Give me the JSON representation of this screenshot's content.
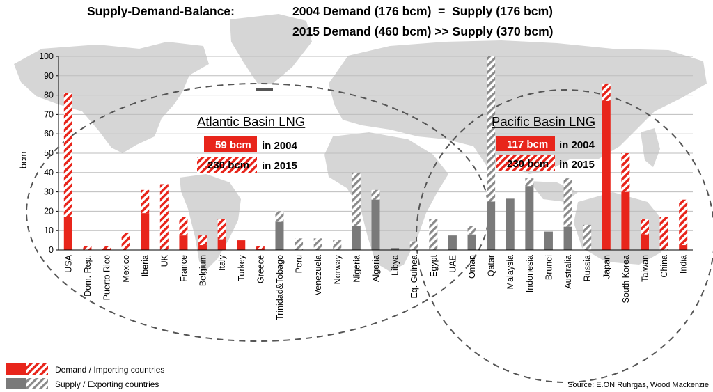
{
  "header": {
    "label": "Supply-Demand-Balance:",
    "line1": "2004 Demand (176 bcm)  =  Supply (176 bcm)",
    "line2": "2015 Demand (460 bcm) >> Supply (370 bcm)"
  },
  "source": "Source: E.ON Ruhrgas, Wood Mackenzie",
  "colors": {
    "demand": "#e8251b",
    "supply": "#7a7a7a",
    "map": "#d6d6d6",
    "grid": "#bdbdbd"
  },
  "basins": {
    "atlantic": {
      "title": "Atlantic Basin LNG",
      "v2004": "59 bcm",
      "l2004": "in 2004",
      "v2015": "230 bcm",
      "l2015": "in 2015"
    },
    "pacific": {
      "title": "Pacific Basin LNG",
      "v2004": "117 bcm",
      "l2004": "in 2004",
      "v2015": "230 bcm",
      "l2015": "in 2015"
    }
  },
  "legend": {
    "demand": "Demand / Importing countries",
    "supply": "Supply / Exporting countries"
  },
  "chart_data": {
    "type": "bar",
    "ylabel": "bcm",
    "ylim": [
      0,
      100
    ],
    "yticks": [
      0,
      10,
      20,
      30,
      40,
      50,
      60,
      70,
      80,
      90,
      100
    ],
    "grid": true,
    "series_note": "solid = 2004, hatched = 2015 total",
    "countries": [
      {
        "name": "USA",
        "role": "demand",
        "v2004": 17,
        "v2015": 81
      },
      {
        "name": "Dom. Rep.",
        "role": "demand",
        "v2004": 0,
        "v2015": 2
      },
      {
        "name": "Puerto Rico",
        "role": "demand",
        "v2004": 0.5,
        "v2015": 2
      },
      {
        "name": "Mexico",
        "role": "demand",
        "v2004": 0,
        "v2015": 9
      },
      {
        "name": "Iberia",
        "role": "demand",
        "v2004": 19,
        "v2015": 31
      },
      {
        "name": "UK",
        "role": "demand",
        "v2004": 0,
        "v2015": 34
      },
      {
        "name": "France",
        "role": "demand",
        "v2004": 7.5,
        "v2015": 17
      },
      {
        "name": "Belgium",
        "role": "demand",
        "v2004": 2.5,
        "v2015": 7.5
      },
      {
        "name": "Italy",
        "role": "demand",
        "v2004": 5.5,
        "v2015": 16
      },
      {
        "name": "Turkey",
        "role": "demand",
        "v2004": 5,
        "v2015": 5
      },
      {
        "name": "Greece",
        "role": "demand",
        "v2004": 0.5,
        "v2015": 2
      },
      {
        "name": "Trinidad&Tobago",
        "role": "supply",
        "v2004": 14.5,
        "v2015": 20
      },
      {
        "name": "Peru",
        "role": "supply",
        "v2004": 0,
        "v2015": 6
      },
      {
        "name": "Venezuela",
        "role": "supply",
        "v2004": 0,
        "v2015": 6
      },
      {
        "name": "Norway",
        "role": "supply",
        "v2004": 0,
        "v2015": 5
      },
      {
        "name": "Nigeria",
        "role": "supply",
        "v2004": 12.5,
        "v2015": 40
      },
      {
        "name": "Algeria",
        "role": "supply",
        "v2004": 26,
        "v2015": 31
      },
      {
        "name": "Libya",
        "role": "supply",
        "v2004": 1,
        "v2015": 1
      },
      {
        "name": "Eq. Guinea",
        "role": "supply",
        "v2004": 0,
        "v2015": 4.5
      },
      {
        "name": "Egypt",
        "role": "supply",
        "v2004": 0,
        "v2015": 16
      },
      {
        "name": "UAE",
        "role": "supply",
        "v2004": 7.5,
        "v2015": 7.5
      },
      {
        "name": "Oman",
        "role": "supply",
        "v2004": 8,
        "v2015": 12.5
      },
      {
        "name": "Qatar",
        "role": "supply",
        "v2004": 25,
        "v2015": 100
      },
      {
        "name": "Malaysia",
        "role": "supply",
        "v2004": 26.5,
        "v2015": 26.5
      },
      {
        "name": "Indonesia",
        "role": "supply",
        "v2004": 33,
        "v2015": 37
      },
      {
        "name": "Brunei",
        "role": "supply",
        "v2004": 9.5,
        "v2015": 9.5
      },
      {
        "name": "Australia",
        "role": "supply",
        "v2004": 12,
        "v2015": 37
      },
      {
        "name": "Russia",
        "role": "supply",
        "v2004": 0,
        "v2015": 13
      },
      {
        "name": "Japan",
        "role": "demand",
        "v2004": 77,
        "v2015": 86
      },
      {
        "name": "South Korea",
        "role": "demand",
        "v2004": 30,
        "v2015": 50
      },
      {
        "name": "Taiwan",
        "role": "demand",
        "v2004": 8,
        "v2015": 16
      },
      {
        "name": "China",
        "role": "demand",
        "v2004": 0,
        "v2015": 17
      },
      {
        "name": "India",
        "role": "demand",
        "v2004": 2.5,
        "v2015": 26
      }
    ]
  }
}
